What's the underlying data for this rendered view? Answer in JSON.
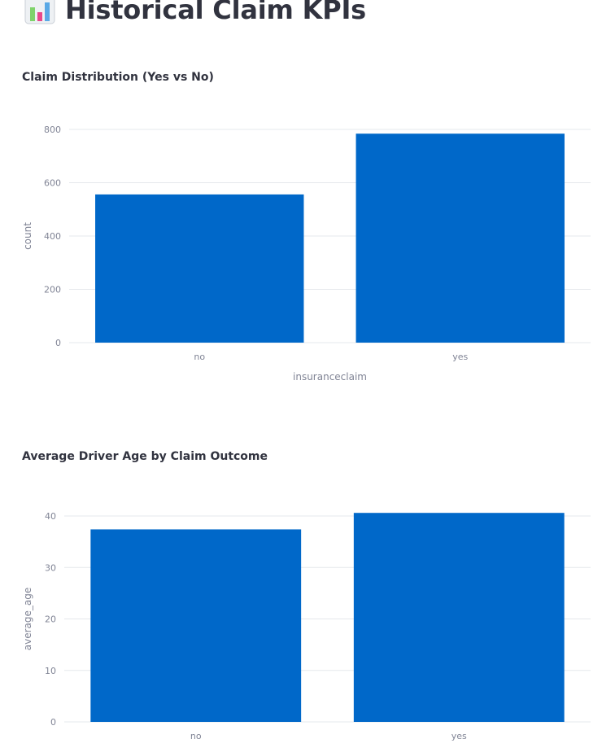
{
  "page": {
    "title": "Historical Claim KPIs",
    "title_icon": "bar-chart-emoji-icon"
  },
  "charts": {
    "claims": {
      "title": "Claim Distribution (Yes vs No)"
    },
    "age": {
      "title": "Average Driver Age by Claim Outcome"
    }
  },
  "colors": {
    "bar": "#0068c9",
    "grid": "#e6e8ec",
    "tick_text": "#808495",
    "title_text": "#31333f"
  },
  "chart_data": [
    {
      "type": "bar",
      "title": "Claim Distribution (Yes vs No)",
      "categories": [
        "no",
        "yes"
      ],
      "values": [
        556,
        784
      ],
      "xlabel": "insuranceclaim",
      "ylabel": "count",
      "ylim": [
        0,
        800
      ],
      "yticks": [
        0,
        200,
        400,
        600,
        800
      ],
      "grid": true,
      "legend": "none"
    },
    {
      "type": "bar",
      "title": "Average Driver Age by Claim Outcome",
      "categories": [
        "no",
        "yes"
      ],
      "values": [
        37.4,
        40.6
      ],
      "xlabel": "",
      "ylabel": "average_age",
      "ylim": [
        0,
        40
      ],
      "yticks": [
        0,
        10,
        20,
        30,
        40
      ],
      "grid": true,
      "legend": "none"
    }
  ]
}
